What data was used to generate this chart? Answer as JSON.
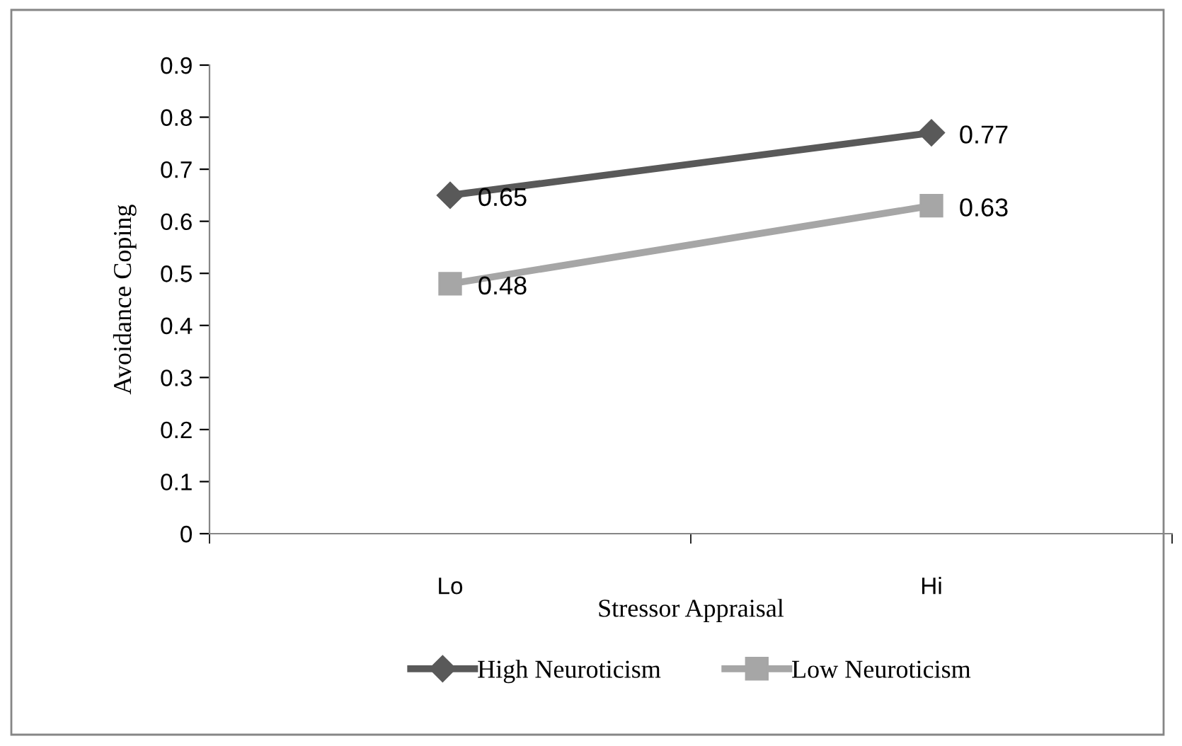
{
  "chart_data": {
    "type": "line",
    "xlabel": "Stressor Appraisal",
    "ylabel": "Avoidance Coping",
    "categories": [
      "Lo",
      "Hi"
    ],
    "series": [
      {
        "name": "High Neuroticism",
        "color": "#595959",
        "values": [
          0.65,
          0.77
        ],
        "marker": "diamond"
      },
      {
        "name": "Low Neuroticism",
        "color": "#a6a6a6",
        "values": [
          0.48,
          0.63
        ],
        "marker": "square"
      }
    ],
    "ylim": [
      0,
      0.9
    ],
    "yticks": [
      0,
      0.1,
      0.2,
      0.3,
      0.4,
      0.5,
      0.6,
      0.7,
      0.8,
      0.9
    ],
    "data_labels": true,
    "grid": false,
    "legend": "bottom",
    "line_style": "solid"
  }
}
